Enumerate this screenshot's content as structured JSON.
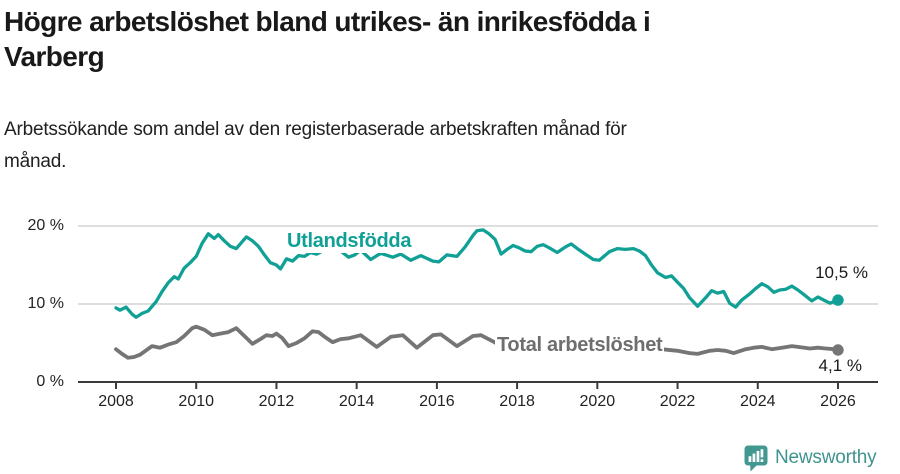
{
  "header": {
    "title_line1": "Högre arbetslöshet bland utrikes- än inrikesfödda i",
    "title_line2": "Varberg",
    "subtitle_line1": "Arbetssökande som andel av den registerbaserade arbetskraften månad för",
    "subtitle_line2": "månad."
  },
  "footer": {
    "brand": "Newsworthy"
  },
  "colors": {
    "accent_teal": "#10a096",
    "series_gray": "#757575",
    "gray_label": "#6e6e6e",
    "gridline": "#dadada",
    "axis": "#3b3b3b",
    "text": "#191919",
    "brand_teal": "#3e948e"
  },
  "chart_data": {
    "type": "line",
    "title": "Högre arbetslöshet bland utrikes- än inrikesfödda i Varberg",
    "subtitle": "Arbetssökande som andel av den registerbaserade arbetskraften månad för månad.",
    "xlabel": "",
    "ylabel": "",
    "x_unit": "year (monthly data)",
    "xlim": [
      2007.5,
      2026.6
    ],
    "ylim": [
      0,
      21
    ],
    "grid": "horizontal",
    "legend_position": "inline-labels",
    "x_ticks": [
      2008,
      2010,
      2012,
      2014,
      2016,
      2018,
      2020,
      2022,
      2024,
      2026
    ],
    "y_ticks": [
      {
        "value": 0,
        "label": "0 %"
      },
      {
        "value": 10,
        "label": "10 %"
      },
      {
        "value": 20,
        "label": "20 %"
      }
    ],
    "series": [
      {
        "name": "Utlandsfödda",
        "label": "Utlandsfödda",
        "color": "#10a096",
        "end_label": "10,5 %",
        "end_value": 10.5,
        "points": [
          [
            2008.0,
            9.5
          ],
          [
            2008.1,
            9.2
          ],
          [
            2008.25,
            9.6
          ],
          [
            2008.4,
            8.7
          ],
          [
            2008.5,
            8.3
          ],
          [
            2008.65,
            8.8
          ],
          [
            2008.8,
            9.1
          ],
          [
            2009.0,
            10.3
          ],
          [
            2009.15,
            11.6
          ],
          [
            2009.3,
            12.7
          ],
          [
            2009.45,
            13.5
          ],
          [
            2009.55,
            13.2
          ],
          [
            2009.7,
            14.6
          ],
          [
            2009.85,
            15.3
          ],
          [
            2010.0,
            16.1
          ],
          [
            2010.15,
            17.8
          ],
          [
            2010.3,
            19.0
          ],
          [
            2010.45,
            18.4
          ],
          [
            2010.55,
            18.9
          ],
          [
            2010.7,
            18.1
          ],
          [
            2010.85,
            17.4
          ],
          [
            2011.0,
            17.1
          ],
          [
            2011.15,
            18.0
          ],
          [
            2011.25,
            18.6
          ],
          [
            2011.4,
            18.1
          ],
          [
            2011.55,
            17.4
          ],
          [
            2011.7,
            16.3
          ],
          [
            2011.85,
            15.3
          ],
          [
            2012.0,
            15.0
          ],
          [
            2012.1,
            14.5
          ],
          [
            2012.25,
            15.8
          ],
          [
            2012.4,
            15.5
          ],
          [
            2012.55,
            16.2
          ],
          [
            2012.7,
            16.1
          ],
          [
            2012.85,
            16.6
          ],
          [
            2013.0,
            16.4
          ],
          [
            2013.15,
            16.8
          ],
          [
            2013.3,
            17.2
          ],
          [
            2013.45,
            17.3
          ],
          [
            2013.6,
            16.8
          ],
          [
            2013.8,
            16.0
          ],
          [
            2013.95,
            16.3
          ],
          [
            2014.1,
            16.9
          ],
          [
            2014.35,
            15.7
          ],
          [
            2014.6,
            16.5
          ],
          [
            2014.9,
            16.0
          ],
          [
            2015.1,
            16.4
          ],
          [
            2015.35,
            15.6
          ],
          [
            2015.6,
            16.2
          ],
          [
            2015.9,
            15.5
          ],
          [
            2016.05,
            15.4
          ],
          [
            2016.25,
            16.3
          ],
          [
            2016.5,
            16.1
          ],
          [
            2016.7,
            17.3
          ],
          [
            2016.9,
            18.8
          ],
          [
            2017.0,
            19.4
          ],
          [
            2017.15,
            19.5
          ],
          [
            2017.3,
            19.0
          ],
          [
            2017.45,
            18.3
          ],
          [
            2017.6,
            16.4
          ],
          [
            2017.75,
            17.0
          ],
          [
            2017.9,
            17.5
          ],
          [
            2018.05,
            17.2
          ],
          [
            2018.2,
            16.8
          ],
          [
            2018.35,
            16.7
          ],
          [
            2018.5,
            17.4
          ],
          [
            2018.65,
            17.6
          ],
          [
            2018.8,
            17.2
          ],
          [
            2019.0,
            16.6
          ],
          [
            2019.2,
            17.3
          ],
          [
            2019.35,
            17.7
          ],
          [
            2019.5,
            17.1
          ],
          [
            2019.7,
            16.4
          ],
          [
            2019.9,
            15.7
          ],
          [
            2020.05,
            15.6
          ],
          [
            2020.3,
            16.7
          ],
          [
            2020.5,
            17.1
          ],
          [
            2020.7,
            17.0
          ],
          [
            2020.9,
            17.1
          ],
          [
            2021.05,
            16.8
          ],
          [
            2021.2,
            16.2
          ],
          [
            2021.35,
            15.0
          ],
          [
            2021.5,
            14.0
          ],
          [
            2021.7,
            13.4
          ],
          [
            2021.85,
            13.6
          ],
          [
            2022.0,
            12.8
          ],
          [
            2022.15,
            12.0
          ],
          [
            2022.3,
            10.8
          ],
          [
            2022.5,
            9.7
          ],
          [
            2022.7,
            10.8
          ],
          [
            2022.85,
            11.7
          ],
          [
            2023.0,
            11.4
          ],
          [
            2023.15,
            11.6
          ],
          [
            2023.3,
            10.1
          ],
          [
            2023.45,
            9.6
          ],
          [
            2023.6,
            10.5
          ],
          [
            2023.8,
            11.3
          ],
          [
            2023.95,
            12.0
          ],
          [
            2024.1,
            12.6
          ],
          [
            2024.25,
            12.2
          ],
          [
            2024.4,
            11.5
          ],
          [
            2024.55,
            11.8
          ],
          [
            2024.7,
            11.9
          ],
          [
            2024.85,
            12.3
          ],
          [
            2025.0,
            11.8
          ],
          [
            2025.15,
            11.2
          ],
          [
            2025.35,
            10.4
          ],
          [
            2025.5,
            10.9
          ],
          [
            2025.65,
            10.5
          ],
          [
            2025.8,
            10.1
          ],
          [
            2026.0,
            10.5
          ]
        ]
      },
      {
        "name": "Total arbetslöshet",
        "label": "Total arbetslöshet",
        "color": "#757575",
        "end_label": "4,1 %",
        "end_value": 4.1,
        "points": [
          [
            2008.0,
            4.2
          ],
          [
            2008.15,
            3.6
          ],
          [
            2008.3,
            3.1
          ],
          [
            2008.45,
            3.2
          ],
          [
            2008.6,
            3.5
          ],
          [
            2008.9,
            4.6
          ],
          [
            2009.1,
            4.4
          ],
          [
            2009.3,
            4.8
          ],
          [
            2009.5,
            5.1
          ],
          [
            2009.7,
            5.9
          ],
          [
            2009.9,
            6.9
          ],
          [
            2010.0,
            7.1
          ],
          [
            2010.2,
            6.7
          ],
          [
            2010.4,
            6.0
          ],
          [
            2010.6,
            6.2
          ],
          [
            2010.8,
            6.4
          ],
          [
            2011.0,
            6.9
          ],
          [
            2011.2,
            5.9
          ],
          [
            2011.4,
            4.9
          ],
          [
            2011.6,
            5.5
          ],
          [
            2011.75,
            6.0
          ],
          [
            2011.9,
            5.9
          ],
          [
            2012.0,
            6.2
          ],
          [
            2012.15,
            5.6
          ],
          [
            2012.3,
            4.6
          ],
          [
            2012.5,
            5.0
          ],
          [
            2012.7,
            5.6
          ],
          [
            2012.9,
            6.5
          ],
          [
            2013.05,
            6.4
          ],
          [
            2013.2,
            5.8
          ],
          [
            2013.4,
            5.1
          ],
          [
            2013.6,
            5.5
          ],
          [
            2013.8,
            5.6
          ],
          [
            2014.1,
            6.0
          ],
          [
            2014.5,
            4.5
          ],
          [
            2014.85,
            5.8
          ],
          [
            2015.0,
            5.9
          ],
          [
            2015.15,
            6.0
          ],
          [
            2015.5,
            4.4
          ],
          [
            2015.9,
            6.0
          ],
          [
            2016.1,
            6.1
          ],
          [
            2016.5,
            4.6
          ],
          [
            2016.9,
            5.9
          ],
          [
            2017.1,
            6.0
          ],
          [
            2017.4,
            5.2
          ],
          [
            2017.6,
            4.6
          ],
          [
            2018.0,
            5.4
          ],
          [
            2018.4,
            4.4
          ],
          [
            2019.0,
            5.0
          ],
          [
            2019.5,
            4.0
          ],
          [
            2020.0,
            4.8
          ],
          [
            2020.4,
            5.6
          ],
          [
            2020.9,
            5.2
          ],
          [
            2021.2,
            4.8
          ],
          [
            2021.6,
            4.2
          ],
          [
            2022.0,
            4.0
          ],
          [
            2022.3,
            3.7
          ],
          [
            2022.5,
            3.6
          ],
          [
            2022.8,
            4.0
          ],
          [
            2023.0,
            4.1
          ],
          [
            2023.2,
            4.0
          ],
          [
            2023.4,
            3.7
          ],
          [
            2023.7,
            4.2
          ],
          [
            2023.9,
            4.4
          ],
          [
            2024.1,
            4.5
          ],
          [
            2024.35,
            4.2
          ],
          [
            2024.6,
            4.4
          ],
          [
            2024.85,
            4.6
          ],
          [
            2025.0,
            4.5
          ],
          [
            2025.3,
            4.3
          ],
          [
            2025.5,
            4.4
          ],
          [
            2025.7,
            4.3
          ],
          [
            2025.9,
            4.2
          ],
          [
            2026.0,
            4.1
          ]
        ]
      }
    ]
  }
}
